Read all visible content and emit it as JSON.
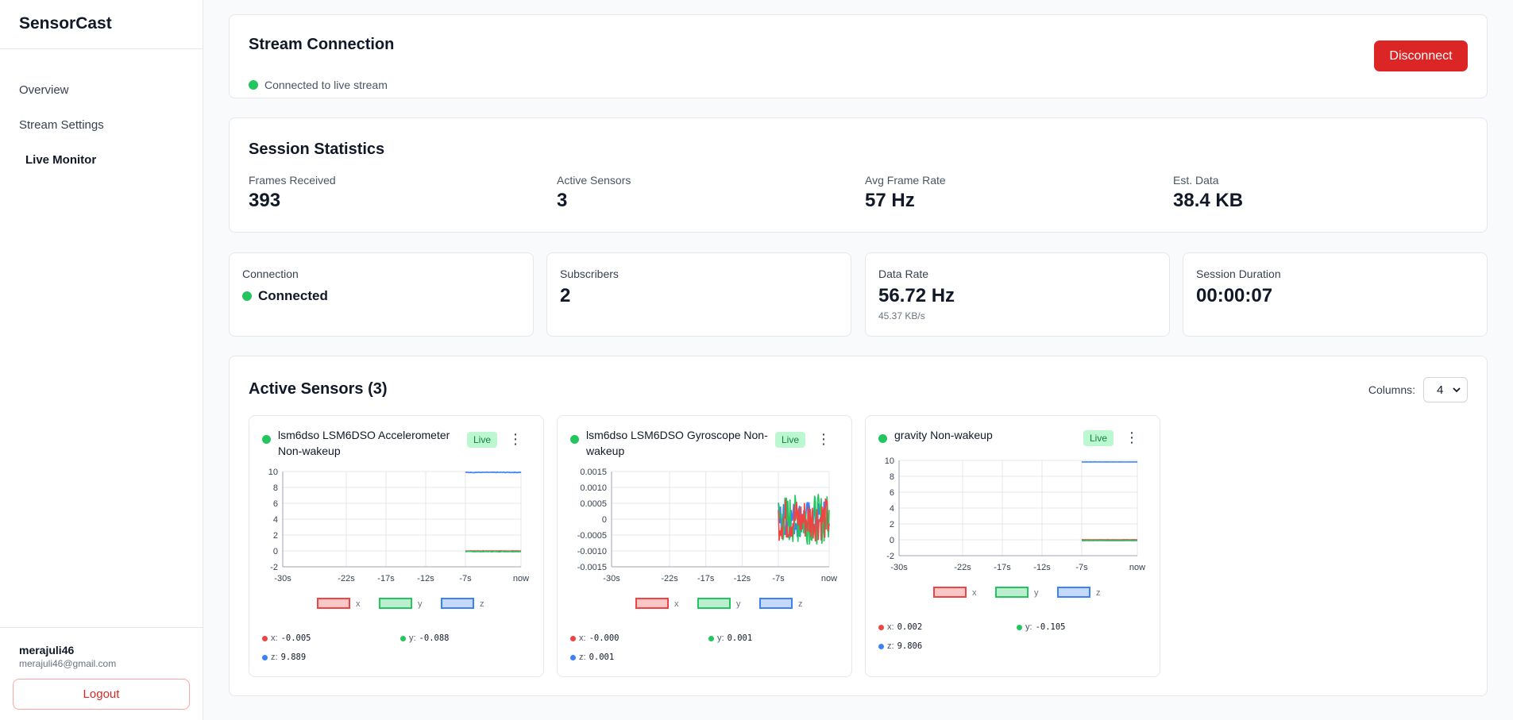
{
  "app": {
    "name": "SensorCast"
  },
  "nav": [
    {
      "label": "Overview"
    },
    {
      "label": "Stream Settings"
    },
    {
      "label": "Live Monitor"
    }
  ],
  "user": {
    "name": "merajuli46",
    "email": "merajuli46@gmail.com",
    "logout_label": "Logout"
  },
  "connection": {
    "title": "Stream Connection",
    "status": "Connected to live stream",
    "disconnect_label": "Disconnect",
    "status_color": "#22c55e"
  },
  "session_stats": {
    "title": "Session Statistics",
    "items": [
      {
        "label": "Frames Received",
        "value": "393"
      },
      {
        "label": "Active Sensors",
        "value": "3"
      },
      {
        "label": "Avg Frame Rate",
        "value": "57 Hz"
      },
      {
        "label": "Est. Data",
        "value": "38.4 KB"
      }
    ]
  },
  "metrics": {
    "connection": {
      "label": "Connection",
      "value": "Connected"
    },
    "subscribers": {
      "label": "Subscribers",
      "value": "2"
    },
    "data_rate": {
      "label": "Data Rate",
      "value": "56.72 Hz",
      "sub": "45.37 KB/s"
    },
    "duration": {
      "label": "Session Duration",
      "value": "00:00:07"
    }
  },
  "sensors_panel": {
    "title": "Active Sensors (3)",
    "columns_label": "Columns:",
    "columns_value": "4"
  },
  "colors": {
    "x": "#ef4444",
    "y": "#22c55e",
    "z": "#3b82f6",
    "live_bg": "#bbf7d0",
    "danger": "#dc2626"
  },
  "sensors": [
    {
      "name": "lsm6dso LSM6DSO Accelerometer Non-wakeup",
      "badge": "Live",
      "readings": {
        "x": "-0.005",
        "y": "-0.088",
        "z": "9.889"
      }
    },
    {
      "name": "lsm6dso LSM6DSO Gyroscope Non-wakeup",
      "badge": "Live",
      "readings": {
        "x": "-0.000",
        "y": "0.001",
        "z": "0.001"
      }
    },
    {
      "name": "gravity Non-wakeup",
      "badge": "Live",
      "readings": {
        "x": "0.002",
        "y": "-0.105",
        "z": "9.806"
      }
    }
  ],
  "chart_data": [
    {
      "type": "line",
      "x_ticks": [
        "-30s",
        "-22s",
        "-17s",
        "-12s",
        "-7s",
        "now"
      ],
      "y_ticks": [
        "10",
        "8",
        "6",
        "4",
        "2",
        "0",
        "-2"
      ],
      "ylim": [
        -2,
        10
      ],
      "legend": [
        "x",
        "y",
        "z"
      ],
      "series": [
        {
          "name": "x",
          "start": -7,
          "level": -0.005,
          "noise": 0.03
        },
        {
          "name": "y",
          "start": -7,
          "level": -0.088,
          "noise": 0.03
        },
        {
          "name": "z",
          "start": -7,
          "level": 9.889,
          "noise": 0.04
        }
      ]
    },
    {
      "type": "line",
      "x_ticks": [
        "-30s",
        "-22s",
        "-17s",
        "-12s",
        "-7s",
        "now"
      ],
      "y_ticks": [
        "0.0015",
        "0.0010",
        "0.0005",
        "0",
        "-0.0005",
        "-0.0010",
        "-0.0015"
      ],
      "ylim": [
        -0.0015,
        0.0015
      ],
      "legend": [
        "x",
        "y",
        "z"
      ],
      "series": [
        {
          "name": "z",
          "start": -7,
          "level": 0.0,
          "noise": 0.0006
        },
        {
          "name": "y",
          "start": -7,
          "level": 0.0,
          "noise": 0.0008
        },
        {
          "name": "x",
          "start": -7,
          "level": 0.0,
          "noise": 0.0007
        }
      ]
    },
    {
      "type": "line",
      "x_ticks": [
        "-30s",
        "-22s",
        "-17s",
        "-12s",
        "-7s",
        "now"
      ],
      "y_ticks": [
        "10",
        "8",
        "6",
        "4",
        "2",
        "0",
        "-2"
      ],
      "ylim": [
        -2,
        10
      ],
      "legend": [
        "x",
        "y",
        "z"
      ],
      "series": [
        {
          "name": "x",
          "start": -7,
          "level": 0.002,
          "noise": 0.01
        },
        {
          "name": "y",
          "start": -7,
          "level": -0.105,
          "noise": 0.01
        },
        {
          "name": "z",
          "start": -7,
          "level": 9.806,
          "noise": 0.01
        }
      ]
    }
  ]
}
